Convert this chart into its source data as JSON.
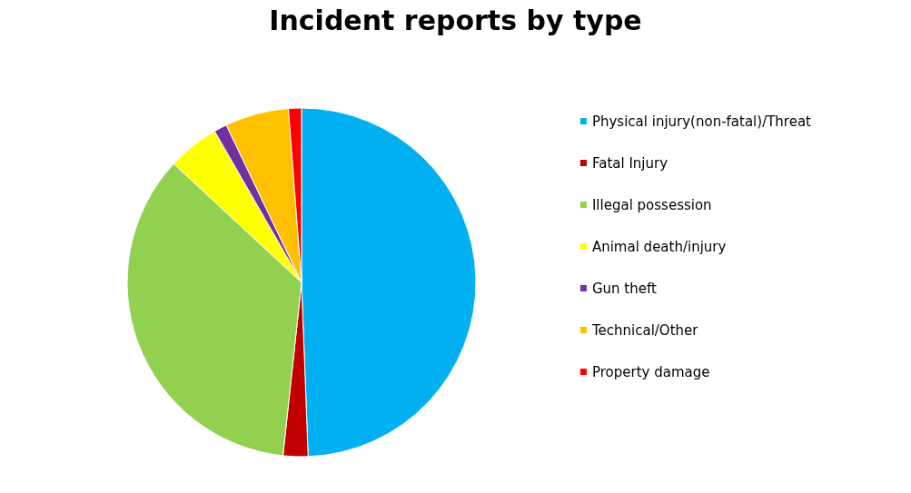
{
  "chart_data": {
    "type": "pie",
    "title": "Incident reports by type",
    "categories": [
      "Physical injury(non-fatal)/Threat",
      "Fatal Injury",
      "Illegal possession",
      "Animal death/injury",
      "Gun theft",
      "Technical/Other",
      "Property damage"
    ],
    "values": [
      49.4,
      2.3,
      35.2,
      4.8,
      1.2,
      5.9,
      1.2
    ],
    "colors": [
      "#00b0f0",
      "#c00000",
      "#92d050",
      "#ffff00",
      "#7030a0",
      "#ffc000",
      "#ff0000"
    ],
    "legend": "right"
  }
}
